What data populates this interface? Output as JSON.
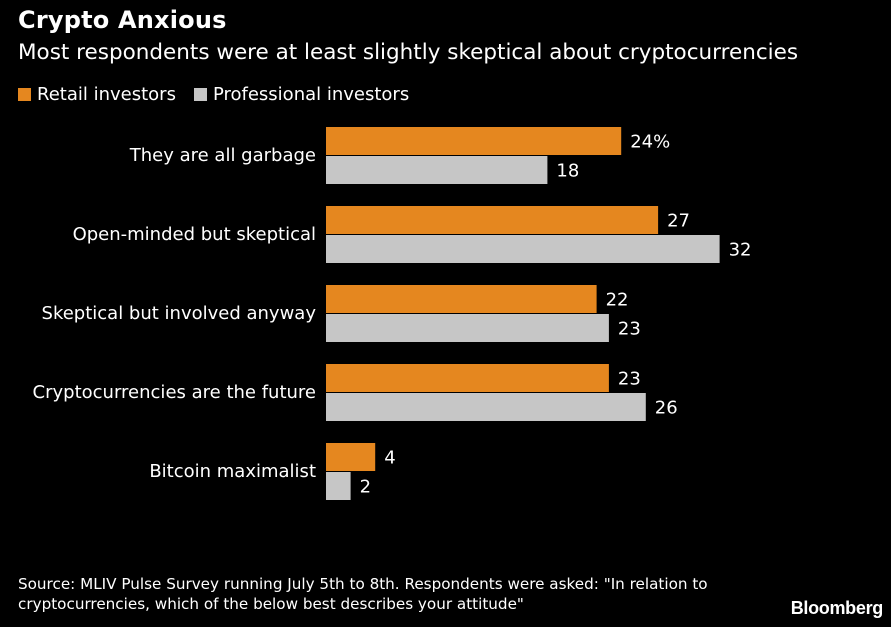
{
  "header": {
    "title": "Crypto Anxious",
    "subtitle": "Most respondents were at least slightly skeptical about cryptocurrencies"
  },
  "legend": {
    "items": [
      {
        "label": "Retail investors",
        "color": "#e5871f"
      },
      {
        "label": "Professional investors",
        "color": "#c6c6c6"
      }
    ]
  },
  "chart_data": {
    "type": "bar",
    "orientation": "horizontal",
    "categories": [
      "They are all garbage",
      "Open-minded but skeptical",
      "Skeptical but involved anyway",
      "Cryptocurrencies are the future",
      "Bitcoin maximalist"
    ],
    "series": [
      {
        "name": "Retail investors",
        "values": [
          24,
          27,
          22,
          23,
          4
        ],
        "labels": [
          "24%",
          "27",
          "22",
          "23",
          "4"
        ],
        "color": "#e5871f"
      },
      {
        "name": "Professional investors",
        "values": [
          18,
          32,
          23,
          26,
          2
        ],
        "labels": [
          "18",
          "32",
          "23",
          "26",
          "2"
        ],
        "color": "#c6c6c6"
      }
    ],
    "title": "Crypto Anxious",
    "subtitle": "Most respondents were at least slightly skeptical about cryptocurrencies",
    "xlabel": "",
    "ylabel": "",
    "xlim": [
      0,
      32
    ],
    "grid": false,
    "legend_position": "top-left"
  },
  "footer": {
    "source": "Source: MLIV Pulse Survey running July 5th to 8th. Respondents were asked: \"In relation to cryptocurrencies, which of the below best describes your attitude\"",
    "brand": "Bloomberg"
  }
}
